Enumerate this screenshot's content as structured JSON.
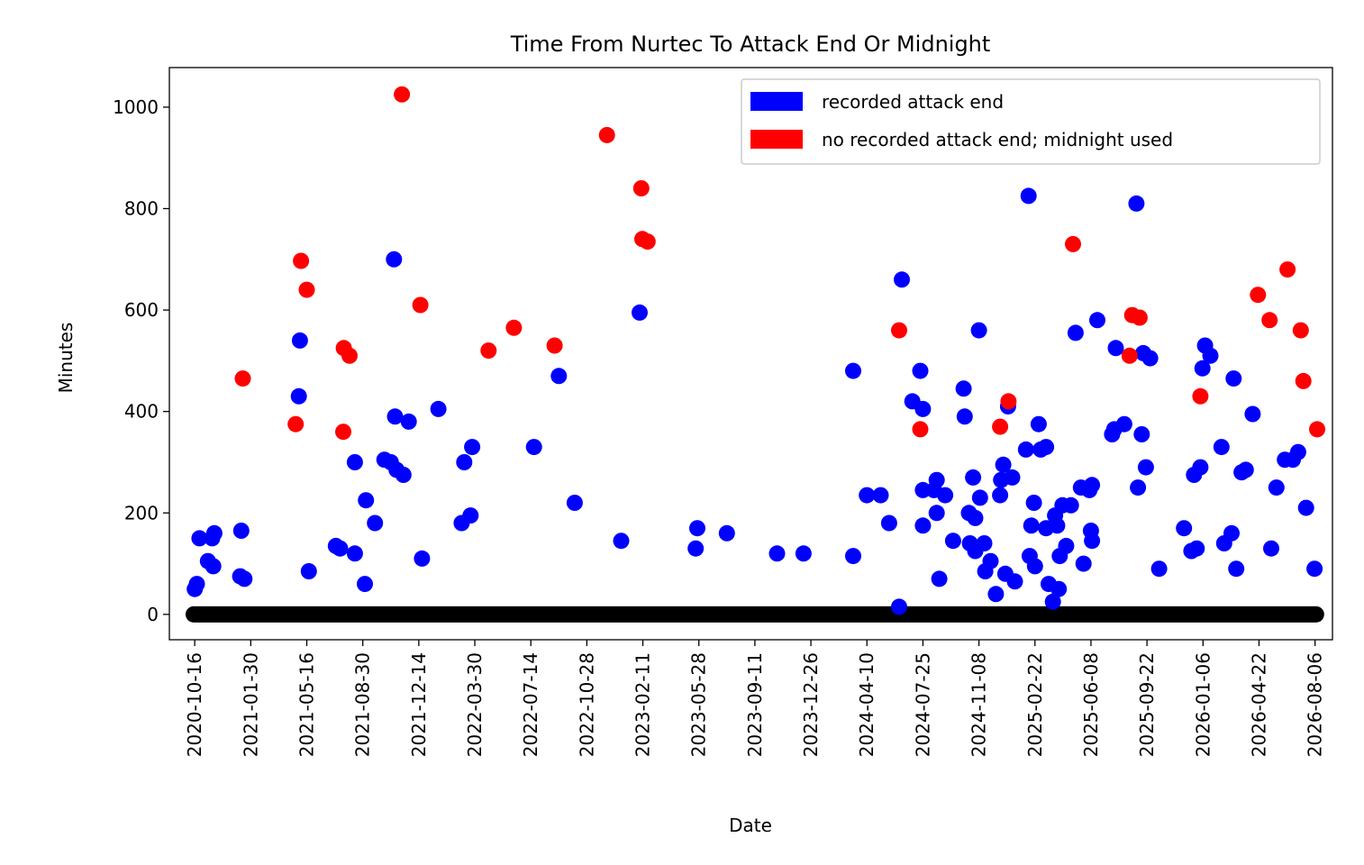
{
  "chart_data": {
    "type": "scatter",
    "title": "Time From Nurtec To Attack End Or Midnight",
    "xlabel": "Date",
    "ylabel": "Minutes",
    "ylim": [
      -50,
      1078
    ],
    "xlim": [
      "2020-08-29",
      "2026-09-08"
    ],
    "grid": false,
    "legend_position": "top-right",
    "x_ticks": [
      "2020-10-16",
      "2021-01-30",
      "2021-05-16",
      "2021-08-30",
      "2021-12-14",
      "2022-03-30",
      "2022-07-14",
      "2022-10-28",
      "2023-02-11",
      "2023-05-28",
      "2023-09-11",
      "2023-12-26",
      "2024-04-10",
      "2024-07-25",
      "2024-11-08",
      "2025-02-22",
      "2025-06-08",
      "2025-09-22",
      "2026-01-06",
      "2026-04-22",
      "2026-08-06"
    ],
    "y_ticks": [
      0,
      200,
      400,
      600,
      800,
      1000
    ],
    "colors": {
      "recorded": "#0000ff",
      "midnight": "#ff0000",
      "baseline": "#000000"
    },
    "series": [
      {
        "name": "recorded attack end",
        "color": "#0000ff",
        "points": [
          [
            "2020-10-16",
            50
          ],
          [
            "2020-10-20",
            60
          ],
          [
            "2020-10-25",
            150
          ],
          [
            "2020-11-10",
            105
          ],
          [
            "2020-11-18",
            150
          ],
          [
            "2020-11-22",
            160
          ],
          [
            "2020-11-20",
            95
          ],
          [
            "2021-01-12",
            165
          ],
          [
            "2021-01-10",
            75
          ],
          [
            "2021-01-18",
            70
          ],
          [
            "2021-05-01",
            430
          ],
          [
            "2021-05-03",
            540
          ],
          [
            "2021-05-20",
            85
          ],
          [
            "2021-07-10",
            135
          ],
          [
            "2021-07-18",
            130
          ],
          [
            "2021-08-15",
            300
          ],
          [
            "2021-08-15",
            120
          ],
          [
            "2021-09-05",
            225
          ],
          [
            "2021-09-03",
            60
          ],
          [
            "2021-09-22",
            180
          ],
          [
            "2021-10-10",
            305
          ],
          [
            "2021-10-22",
            300
          ],
          [
            "2021-10-28",
            700
          ],
          [
            "2021-10-30",
            390
          ],
          [
            "2021-11-02",
            285
          ],
          [
            "2021-11-15",
            275
          ],
          [
            "2021-11-25",
            380
          ],
          [
            "2021-12-20",
            110
          ],
          [
            "2022-01-20",
            405
          ],
          [
            "2022-03-05",
            180
          ],
          [
            "2022-03-10",
            300
          ],
          [
            "2022-03-25",
            330
          ],
          [
            "2022-03-22",
            195
          ],
          [
            "2022-07-20",
            330
          ],
          [
            "2022-09-05",
            470
          ],
          [
            "2022-10-05",
            220
          ],
          [
            "2023-01-01",
            145
          ],
          [
            "2023-02-05",
            595
          ],
          [
            "2023-05-25",
            170
          ],
          [
            "2023-05-22",
            130
          ],
          [
            "2023-07-20",
            160
          ],
          [
            "2023-10-23",
            120
          ],
          [
            "2023-12-12",
            120
          ],
          [
            "2024-03-15",
            480
          ],
          [
            "2024-03-15",
            115
          ],
          [
            "2024-04-10",
            235
          ],
          [
            "2024-05-06",
            235
          ],
          [
            "2024-05-22",
            180
          ],
          [
            "2024-06-10",
            15
          ],
          [
            "2024-06-15",
            660
          ],
          [
            "2024-07-05",
            420
          ],
          [
            "2024-07-20",
            480
          ],
          [
            "2024-07-25",
            405
          ],
          [
            "2024-07-25",
            245
          ],
          [
            "2024-07-25",
            175
          ],
          [
            "2024-08-15",
            245
          ],
          [
            "2024-08-20",
            200
          ],
          [
            "2024-08-20",
            265
          ],
          [
            "2024-08-25",
            70
          ],
          [
            "2024-09-05",
            235
          ],
          [
            "2024-09-20",
            145
          ],
          [
            "2024-10-10",
            445
          ],
          [
            "2024-10-12",
            390
          ],
          [
            "2024-10-20",
            200
          ],
          [
            "2024-10-22",
            140
          ],
          [
            "2024-10-28",
            270
          ],
          [
            "2024-11-01",
            190
          ],
          [
            "2024-11-01",
            125
          ],
          [
            "2024-11-08",
            560
          ],
          [
            "2024-11-10",
            230
          ],
          [
            "2024-11-18",
            140
          ],
          [
            "2024-11-20",
            85
          ],
          [
            "2024-11-30",
            105
          ],
          [
            "2024-12-10",
            40
          ],
          [
            "2024-12-18",
            235
          ],
          [
            "2024-12-20",
            265
          ],
          [
            "2024-12-24",
            295
          ],
          [
            "2024-12-28",
            80
          ],
          [
            "2025-01-02",
            410
          ],
          [
            "2025-01-10",
            270
          ],
          [
            "2025-01-15",
            65
          ],
          [
            "2025-02-05",
            325
          ],
          [
            "2025-02-10",
            825
          ],
          [
            "2025-02-12",
            115
          ],
          [
            "2025-02-15",
            175
          ],
          [
            "2025-02-20",
            220
          ],
          [
            "2025-02-22",
            95
          ],
          [
            "2025-03-01",
            375
          ],
          [
            "2025-03-05",
            325
          ],
          [
            "2025-03-15",
            330
          ],
          [
            "2025-03-15",
            170
          ],
          [
            "2025-03-20",
            60
          ],
          [
            "2025-03-28",
            25
          ],
          [
            "2025-04-01",
            195
          ],
          [
            "2025-04-05",
            175
          ],
          [
            "2025-04-08",
            50
          ],
          [
            "2025-04-10",
            115
          ],
          [
            "2025-04-15",
            215
          ],
          [
            "2025-04-22",
            135
          ],
          [
            "2025-05-01",
            215
          ],
          [
            "2025-05-10",
            555
          ],
          [
            "2025-05-20",
            250
          ],
          [
            "2025-05-25",
            100
          ],
          [
            "2025-06-05",
            245
          ],
          [
            "2025-06-08",
            165
          ],
          [
            "2025-06-10",
            255
          ],
          [
            "2025-06-10",
            145
          ],
          [
            "2025-06-20",
            580
          ],
          [
            "2025-07-18",
            355
          ],
          [
            "2025-07-22",
            365
          ],
          [
            "2025-07-25",
            525
          ],
          [
            "2025-08-10",
            375
          ],
          [
            "2025-09-02",
            810
          ],
          [
            "2025-09-05",
            250
          ],
          [
            "2025-09-12",
            355
          ],
          [
            "2025-09-15",
            515
          ],
          [
            "2025-09-20",
            290
          ],
          [
            "2025-09-28",
            505
          ],
          [
            "2025-10-15",
            90
          ],
          [
            "2025-12-01",
            170
          ],
          [
            "2025-12-15",
            125
          ],
          [
            "2025-12-20",
            275
          ],
          [
            "2025-12-25",
            130
          ],
          [
            "2026-01-01",
            290
          ],
          [
            "2026-01-05",
            485
          ],
          [
            "2026-01-10",
            530
          ],
          [
            "2026-01-20",
            510
          ],
          [
            "2026-02-10",
            330
          ],
          [
            "2026-02-15",
            140
          ],
          [
            "2026-03-01",
            160
          ],
          [
            "2026-03-05",
            465
          ],
          [
            "2026-03-10",
            90
          ],
          [
            "2026-03-20",
            280
          ],
          [
            "2026-03-28",
            285
          ],
          [
            "2026-04-10",
            395
          ],
          [
            "2026-05-15",
            130
          ],
          [
            "2026-05-25",
            250
          ],
          [
            "2026-06-10",
            305
          ],
          [
            "2026-06-25",
            305
          ],
          [
            "2026-07-05",
            320
          ],
          [
            "2026-07-20",
            210
          ],
          [
            "2026-08-05",
            90
          ]
        ]
      },
      {
        "name": "no recorded attack end; midnight used",
        "color": "#ff0000",
        "points": [
          [
            "2021-01-15",
            465
          ],
          [
            "2021-04-25",
            375
          ],
          [
            "2021-05-05",
            697
          ],
          [
            "2021-05-16",
            640
          ],
          [
            "2021-07-24",
            360
          ],
          [
            "2021-07-25",
            525
          ],
          [
            "2021-08-05",
            510
          ],
          [
            "2021-11-12",
            1025
          ],
          [
            "2021-12-17",
            610
          ],
          [
            "2022-04-25",
            520
          ],
          [
            "2022-06-12",
            565
          ],
          [
            "2022-08-28",
            530
          ],
          [
            "2022-12-05",
            945
          ],
          [
            "2023-02-08",
            840
          ],
          [
            "2023-02-10",
            740
          ],
          [
            "2023-02-20",
            735
          ],
          [
            "2024-06-10",
            560
          ],
          [
            "2024-07-20",
            365
          ],
          [
            "2024-12-18",
            370
          ],
          [
            "2025-01-03",
            420
          ],
          [
            "2025-05-05",
            730
          ],
          [
            "2025-08-20",
            510
          ],
          [
            "2025-08-25",
            590
          ],
          [
            "2025-09-08",
            585
          ],
          [
            "2026-01-01",
            430
          ],
          [
            "2026-04-20",
            630
          ],
          [
            "2026-05-12",
            580
          ],
          [
            "2026-06-15",
            680
          ],
          [
            "2026-07-10",
            560
          ],
          [
            "2026-07-15",
            460
          ],
          [
            "2026-08-10",
            365
          ]
        ]
      },
      {
        "name": "",
        "color": "#000000",
        "range": [
          "2020-10-14",
          "2026-08-08"
        ],
        "value": 0
      }
    ]
  },
  "legend": {
    "items": [
      {
        "label": "recorded attack end",
        "color": "#0000ff"
      },
      {
        "label": "no recorded attack end; midnight used",
        "color": "#ff0000"
      }
    ]
  }
}
